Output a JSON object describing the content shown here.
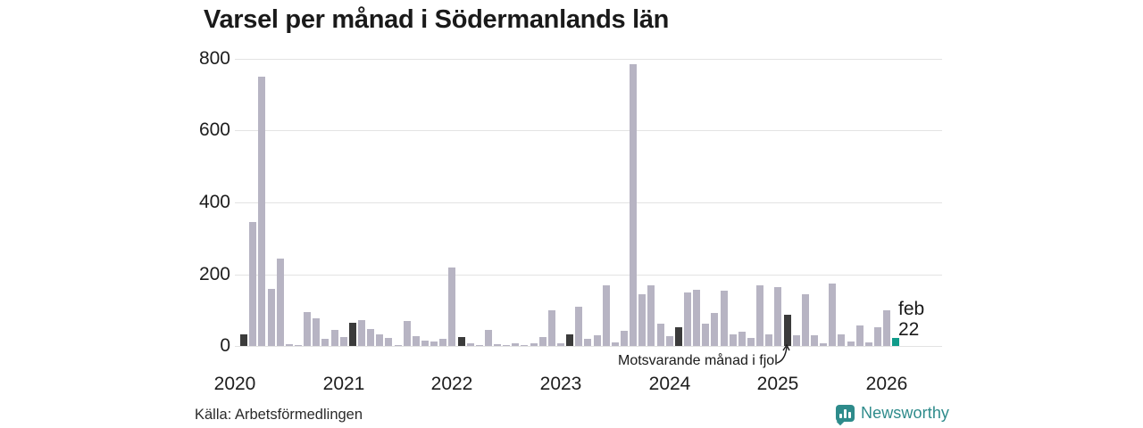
{
  "title": "Varsel per månad i Södermanlands län",
  "source": "Källa: Arbetsförmedlingen",
  "brand": {
    "name": "Newsworthy",
    "color": "#2e8b8b",
    "icon": "bar-chart-bubble-icon"
  },
  "annotation": {
    "text": "Motsvarande månad i fjol",
    "points_to": "2025-02"
  },
  "highlight_label": {
    "month": "feb",
    "value": "22"
  },
  "colors": {
    "bar_default": "#b7b4c3",
    "bar_same_month_last_years": "#3b3b3b",
    "bar_current": "#109b8a",
    "gridline": "#e3e3e3",
    "text": "#1a1a1a"
  },
  "chart_data": {
    "type": "bar",
    "title": "Varsel per månad i Södermanlands län",
    "xlabel": "",
    "ylabel": "",
    "ylim": [
      0,
      800
    ],
    "y_ticks": [
      800,
      600,
      400,
      200,
      0
    ],
    "x_year_labels": [
      "2020",
      "2021",
      "2022",
      "2023",
      "2024",
      "2025",
      "2026"
    ],
    "grid": "horizontal",
    "legend_position": "none",
    "bars": [
      {
        "m": "2020-01",
        "v": 0,
        "c": "gray"
      },
      {
        "m": "2020-02",
        "v": 33,
        "c": "dark"
      },
      {
        "m": "2020-03",
        "v": 345,
        "c": "gray"
      },
      {
        "m": "2020-04",
        "v": 750,
        "c": "gray"
      },
      {
        "m": "2020-05",
        "v": 160,
        "c": "gray"
      },
      {
        "m": "2020-06",
        "v": 243,
        "c": "gray"
      },
      {
        "m": "2020-07",
        "v": 6,
        "c": "gray"
      },
      {
        "m": "2020-08",
        "v": 2,
        "c": "gray"
      },
      {
        "m": "2020-09",
        "v": 95,
        "c": "gray"
      },
      {
        "m": "2020-10",
        "v": 77,
        "c": "gray"
      },
      {
        "m": "2020-11",
        "v": 19,
        "c": "gray"
      },
      {
        "m": "2020-12",
        "v": 45,
        "c": "gray"
      },
      {
        "m": "2021-01",
        "v": 25,
        "c": "gray"
      },
      {
        "m": "2021-02",
        "v": 65,
        "c": "dark"
      },
      {
        "m": "2021-03",
        "v": 71,
        "c": "gray"
      },
      {
        "m": "2021-04",
        "v": 47,
        "c": "gray"
      },
      {
        "m": "2021-05",
        "v": 33,
        "c": "gray"
      },
      {
        "m": "2021-06",
        "v": 22,
        "c": "gray"
      },
      {
        "m": "2021-07",
        "v": 2,
        "c": "gray"
      },
      {
        "m": "2021-08",
        "v": 70,
        "c": "gray"
      },
      {
        "m": "2021-09",
        "v": 28,
        "c": "gray"
      },
      {
        "m": "2021-10",
        "v": 16,
        "c": "gray"
      },
      {
        "m": "2021-11",
        "v": 12,
        "c": "gray"
      },
      {
        "m": "2021-12",
        "v": 19,
        "c": "gray"
      },
      {
        "m": "2022-01",
        "v": 218,
        "c": "gray"
      },
      {
        "m": "2022-02",
        "v": 25,
        "c": "dark"
      },
      {
        "m": "2022-03",
        "v": 8,
        "c": "gray"
      },
      {
        "m": "2022-04",
        "v": 2,
        "c": "gray"
      },
      {
        "m": "2022-05",
        "v": 45,
        "c": "gray"
      },
      {
        "m": "2022-06",
        "v": 5,
        "c": "gray"
      },
      {
        "m": "2022-07",
        "v": 2,
        "c": "gray"
      },
      {
        "m": "2022-08",
        "v": 7,
        "c": "gray"
      },
      {
        "m": "2022-09",
        "v": 2,
        "c": "gray"
      },
      {
        "m": "2022-10",
        "v": 7,
        "c": "gray"
      },
      {
        "m": "2022-11",
        "v": 25,
        "c": "gray"
      },
      {
        "m": "2022-12",
        "v": 100,
        "c": "gray"
      },
      {
        "m": "2023-01",
        "v": 7,
        "c": "gray"
      },
      {
        "m": "2023-02",
        "v": 32,
        "c": "dark"
      },
      {
        "m": "2023-03",
        "v": 110,
        "c": "gray"
      },
      {
        "m": "2023-04",
        "v": 20,
        "c": "gray"
      },
      {
        "m": "2023-05",
        "v": 30,
        "c": "gray"
      },
      {
        "m": "2023-06",
        "v": 168,
        "c": "gray"
      },
      {
        "m": "2023-07",
        "v": 10,
        "c": "gray"
      },
      {
        "m": "2023-08",
        "v": 43,
        "c": "gray"
      },
      {
        "m": "2023-09",
        "v": 785,
        "c": "gray"
      },
      {
        "m": "2023-10",
        "v": 145,
        "c": "gray"
      },
      {
        "m": "2023-11",
        "v": 168,
        "c": "gray"
      },
      {
        "m": "2023-12",
        "v": 63,
        "c": "gray"
      },
      {
        "m": "2024-01",
        "v": 27,
        "c": "gray"
      },
      {
        "m": "2024-02",
        "v": 52,
        "c": "dark"
      },
      {
        "m": "2024-03",
        "v": 150,
        "c": "gray"
      },
      {
        "m": "2024-04",
        "v": 157,
        "c": "gray"
      },
      {
        "m": "2024-05",
        "v": 63,
        "c": "gray"
      },
      {
        "m": "2024-06",
        "v": 92,
        "c": "gray"
      },
      {
        "m": "2024-07",
        "v": 155,
        "c": "gray"
      },
      {
        "m": "2024-08",
        "v": 32,
        "c": "gray"
      },
      {
        "m": "2024-09",
        "v": 40,
        "c": "gray"
      },
      {
        "m": "2024-10",
        "v": 22,
        "c": "gray"
      },
      {
        "m": "2024-11",
        "v": 170,
        "c": "gray"
      },
      {
        "m": "2024-12",
        "v": 32,
        "c": "gray"
      },
      {
        "m": "2025-01",
        "v": 163,
        "c": "gray"
      },
      {
        "m": "2025-02",
        "v": 87,
        "c": "dark"
      },
      {
        "m": "2025-03",
        "v": 31,
        "c": "gray"
      },
      {
        "m": "2025-04",
        "v": 144,
        "c": "gray"
      },
      {
        "m": "2025-05",
        "v": 31,
        "c": "gray"
      },
      {
        "m": "2025-06",
        "v": 7,
        "c": "gray"
      },
      {
        "m": "2025-07",
        "v": 173,
        "c": "gray"
      },
      {
        "m": "2025-08",
        "v": 33,
        "c": "gray"
      },
      {
        "m": "2025-09",
        "v": 13,
        "c": "gray"
      },
      {
        "m": "2025-10",
        "v": 56,
        "c": "gray"
      },
      {
        "m": "2025-11",
        "v": 9,
        "c": "gray"
      },
      {
        "m": "2025-12",
        "v": 52,
        "c": "gray"
      },
      {
        "m": "2026-01",
        "v": 100,
        "c": "gray"
      },
      {
        "m": "2026-02",
        "v": 22,
        "c": "teal"
      }
    ]
  }
}
